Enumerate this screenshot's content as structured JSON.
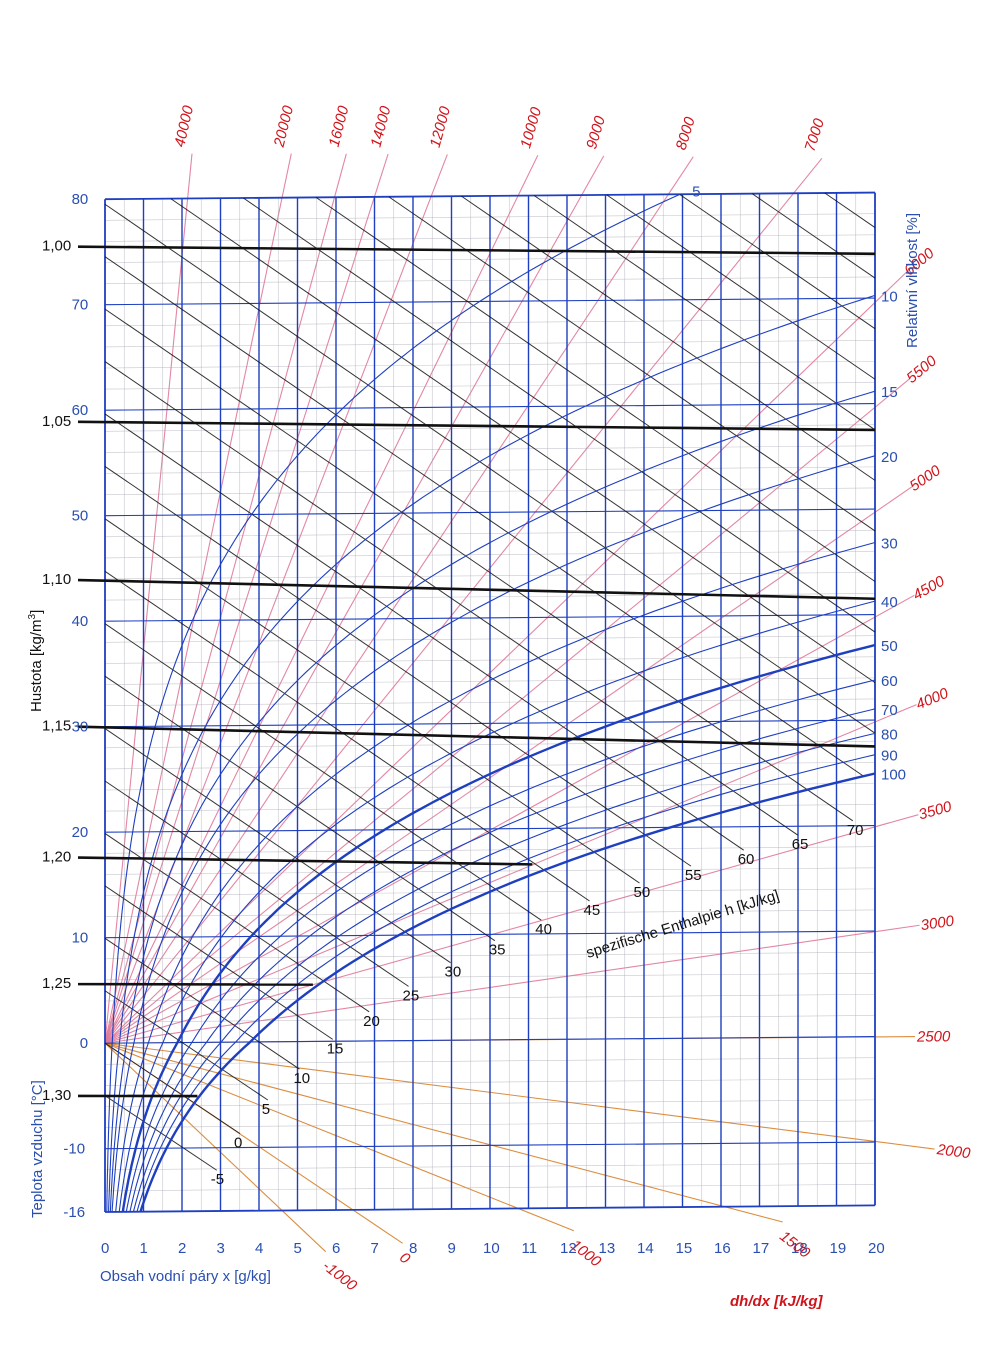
{
  "chart_data": {
    "type": "line",
    "title": "",
    "colors": {
      "blue": "#1e3fbf",
      "blue_text": "#2a4fb0",
      "black": "#111111",
      "red": "#d0141b",
      "pink": "#e07a9a",
      "orange": "#d9822b",
      "grid": "#9a9aa8"
    },
    "x_axis": {
      "label": "Obsah vodní páry x [g/kg]",
      "ticks": [
        "0",
        "1",
        "2",
        "3",
        "4",
        "5",
        "6",
        "7",
        "8",
        "9",
        "10",
        "11",
        "12",
        "13",
        "14",
        "15",
        "16",
        "17",
        "18",
        "19",
        "20"
      ],
      "range": [
        0,
        20
      ]
    },
    "y_axis_temperature": {
      "label": "Teplota vzduchu [°C]",
      "ticks": [
        "80",
        "70",
        "60",
        "50",
        "40",
        "30",
        "20",
        "10",
        "0",
        "-10",
        "-16"
      ],
      "tick_values": [
        80,
        70,
        60,
        50,
        40,
        30,
        20,
        10,
        0,
        -10,
        -16
      ],
      "range": [
        -16,
        80
      ]
    },
    "y_axis_density": {
      "label": "Hustota [kg/m³]",
      "series": [
        {
          "label": "1,00",
          "left_t": 75.5,
          "right_t": 74.2,
          "x_end": 20
        },
        {
          "label": "1,05",
          "left_t": 58.9,
          "right_t": 57.5,
          "x_end": 20
        },
        {
          "label": "1,10",
          "left_t": 43.9,
          "right_t": 41.5,
          "x_end": 20
        },
        {
          "label": "1,15",
          "left_t": 30.0,
          "right_t": 27.5,
          "x_end": 20
        },
        {
          "label": "1,20",
          "left_t": 17.6,
          "right_t": 15.8,
          "x_end": 11.1
        },
        {
          "label": "1,25",
          "left_t": 5.6,
          "right_t": 4.8,
          "x_end": 5.4
        },
        {
          "label": "1,30",
          "left_t": -5.0,
          "right_t": -5.7,
          "x_end": 2.4
        }
      ]
    },
    "relative_humidity": {
      "label": "Relativní vlhkost  [%]",
      "series": [
        {
          "label": "5",
          "rh": 5
        },
        {
          "label": "10",
          "rh": 10
        },
        {
          "label": "15",
          "rh": 15
        },
        {
          "label": "20",
          "rh": 20
        },
        {
          "label": "30",
          "rh": 30
        },
        {
          "label": "40",
          "rh": 40
        },
        {
          "label": "50",
          "rh": 50
        },
        {
          "label": "60",
          "rh": 60
        },
        {
          "label": "70",
          "rh": 70
        },
        {
          "label": "80",
          "rh": 80
        },
        {
          "label": "90",
          "rh": 90
        },
        {
          "label": "100",
          "rh": 100
        }
      ]
    },
    "enthalpy": {
      "label": "spezifische Enthalpie h [kJ/kg]",
      "values": [
        -5,
        0,
        5,
        10,
        15,
        20,
        25,
        30,
        35,
        40,
        45,
        50,
        55,
        60,
        65,
        70,
        75,
        80,
        85,
        90,
        95,
        100,
        105,
        110,
        115,
        120,
        125,
        130,
        135,
        140,
        145,
        150,
        155,
        160,
        165,
        170
      ],
      "labelled": [
        "-5",
        "0",
        "5",
        "10",
        "15",
        "20",
        "25",
        "30",
        "35",
        "40",
        "45",
        "50",
        "55",
        "60",
        "65",
        "70"
      ]
    },
    "direction_scale": {
      "label": "dh/dx [kJ/kg]",
      "values": [
        -1000,
        0,
        1000,
        1500,
        2000,
        2500,
        3000,
        3500,
        4000,
        4500,
        5000,
        5500,
        6000,
        7000,
        8000,
        9000,
        10000,
        12000,
        14000,
        16000,
        20000,
        40000
      ],
      "labels": [
        "-1000",
        "0",
        "1000",
        "1500",
        "2000",
        "2500",
        "3000",
        "3500",
        "4000",
        "4500",
        "5000",
        "5500",
        "6000",
        "7000",
        "8000",
        "9000",
        "10000",
        "12000",
        "14000",
        "16000",
        "20000",
        "40000"
      ]
    }
  }
}
